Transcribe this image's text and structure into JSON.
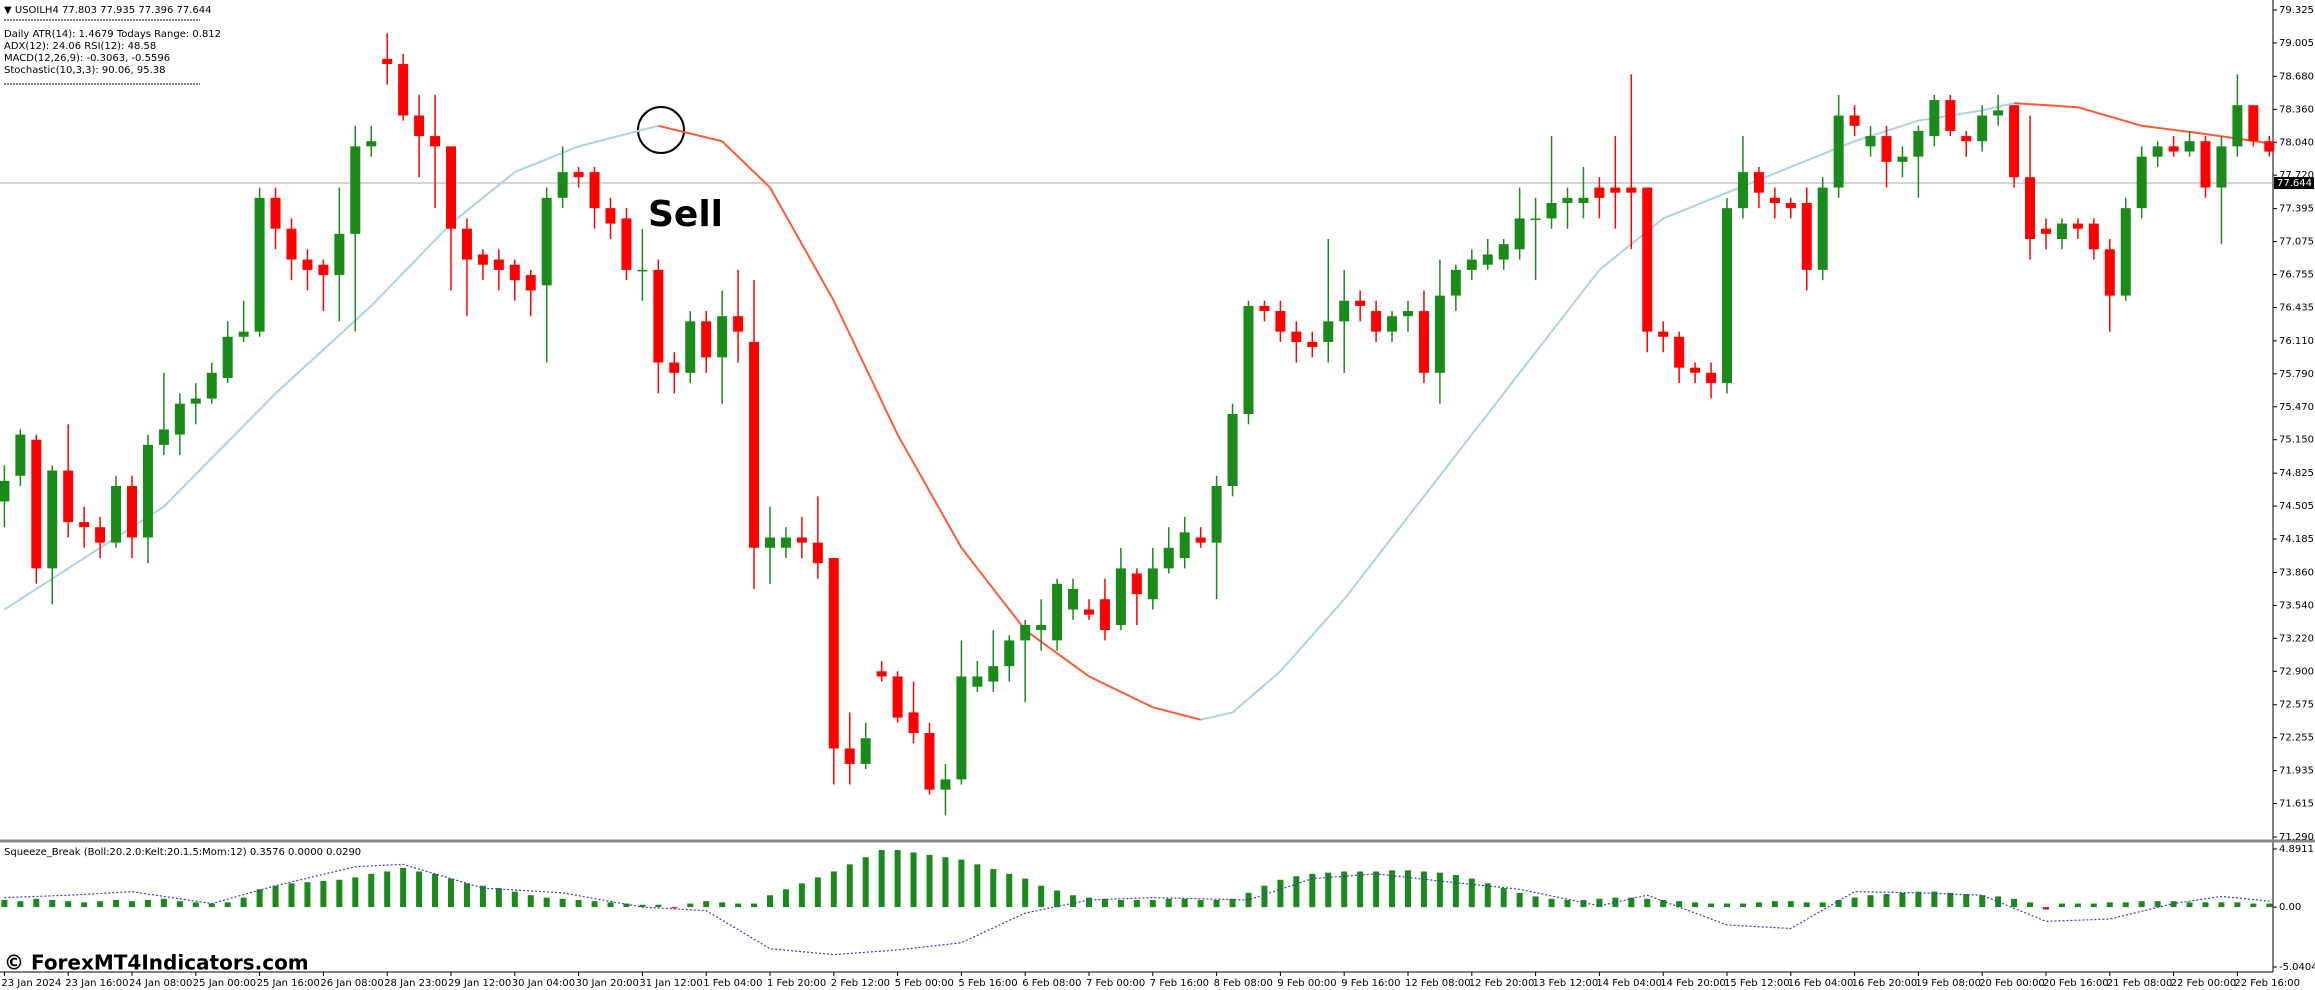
{
  "header": {
    "symbol": "▼ USOILH4  77.803 77.935 77.396 77.644",
    "lines": [
      "Daily ATR(14): 1.4679 Todays Range: 0.812",
      "ADX(12): 24.06 RSI(12): 48.58",
      "MACD(12,26,9): -0.3063, -0.5596",
      "Stochastic(10,3,3): 90.06, 95.38"
    ]
  },
  "watermark": "© ForexMT4Indicators.com",
  "chart_data": {
    "type": "candlestick",
    "up_color": "#1a8a1a",
    "down_color": "#ff0000",
    "ohlc": [
      [
        74.55,
        74.9,
        74.3,
        74.75
      ],
      [
        74.8,
        75.25,
        74.7,
        75.2
      ],
      [
        75.15,
        75.2,
        73.75,
        73.9
      ],
      [
        73.9,
        74.9,
        73.55,
        74.85
      ],
      [
        74.85,
        75.3,
        74.2,
        74.35
      ],
      [
        74.35,
        74.5,
        74.1,
        74.3
      ],
      [
        74.3,
        74.4,
        74.0,
        74.15
      ],
      [
        74.15,
        74.8,
        74.1,
        74.7
      ],
      [
        74.7,
        74.8,
        74.0,
        74.2
      ],
      [
        74.2,
        75.2,
        73.95,
        75.1
      ],
      [
        75.1,
        75.8,
        75.0,
        75.25
      ],
      [
        75.2,
        75.6,
        75.0,
        75.5
      ],
      [
        75.5,
        75.7,
        75.3,
        75.55
      ],
      [
        75.55,
        75.9,
        75.5,
        75.8
      ],
      [
        75.75,
        76.3,
        75.7,
        76.15
      ],
      [
        76.15,
        76.5,
        76.1,
        76.2
      ],
      [
        76.2,
        77.6,
        76.15,
        77.5
      ],
      [
        77.5,
        77.6,
        77.0,
        77.2
      ],
      [
        77.2,
        77.3,
        76.7,
        76.9
      ],
      [
        76.9,
        77.0,
        76.6,
        76.8
      ],
      [
        76.85,
        76.9,
        76.4,
        76.75
      ],
      [
        76.75,
        77.6,
        76.3,
        77.15
      ],
      [
        77.15,
        78.2,
        76.2,
        78.0
      ],
      [
        78.0,
        78.2,
        77.9,
        78.05
      ],
      [
        78.85,
        79.1,
        78.6,
        78.8
      ],
      [
        78.8,
        78.9,
        78.25,
        78.3
      ],
      [
        78.3,
        78.5,
        77.7,
        78.1
      ],
      [
        78.1,
        78.5,
        77.4,
        78.0
      ],
      [
        78.0,
        78.0,
        76.6,
        77.2
      ],
      [
        77.2,
        77.3,
        76.35,
        76.9
      ],
      [
        76.95,
        77.0,
        76.7,
        76.85
      ],
      [
        76.9,
        77.0,
        76.6,
        76.8
      ],
      [
        76.85,
        76.9,
        76.5,
        76.7
      ],
      [
        76.75,
        76.8,
        76.35,
        76.6
      ],
      [
        76.65,
        77.6,
        75.9,
        77.5
      ],
      [
        77.5,
        78.0,
        77.4,
        77.75
      ],
      [
        77.75,
        77.8,
        77.6,
        77.7
      ],
      [
        77.75,
        77.8,
        77.2,
        77.4
      ],
      [
        77.4,
        77.5,
        77.1,
        77.25
      ],
      [
        77.3,
        77.4,
        76.7,
        76.8
      ],
      [
        76.8,
        77.2,
        76.5,
        76.8
      ],
      [
        76.8,
        76.9,
        75.6,
        75.9
      ],
      [
        75.9,
        76.0,
        75.6,
        75.8
      ],
      [
        75.8,
        76.4,
        75.7,
        76.3
      ],
      [
        76.3,
        76.4,
        75.8,
        75.95
      ],
      [
        75.95,
        76.6,
        75.5,
        76.35
      ],
      [
        76.35,
        76.8,
        75.9,
        76.2
      ],
      [
        76.1,
        76.7,
        73.7,
        74.1
      ],
      [
        74.1,
        74.5,
        73.75,
        74.2
      ],
      [
        74.1,
        74.3,
        74.0,
        74.2
      ],
      [
        74.2,
        74.4,
        74.0,
        74.15
      ],
      [
        74.15,
        74.6,
        73.8,
        73.95
      ],
      [
        74.0,
        74.0,
        71.8,
        72.15
      ],
      [
        72.15,
        72.5,
        71.8,
        72.0
      ],
      [
        72.0,
        72.4,
        71.95,
        72.25
      ],
      [
        72.9,
        73.0,
        72.8,
        72.85
      ],
      [
        72.85,
        72.9,
        72.4,
        72.45
      ],
      [
        72.5,
        72.8,
        72.2,
        72.3
      ],
      [
        72.3,
        72.4,
        71.7,
        71.75
      ],
      [
        71.75,
        72.0,
        71.5,
        71.85
      ],
      [
        71.85,
        73.2,
        71.8,
        72.85
      ],
      [
        72.75,
        73.0,
        72.7,
        72.85
      ],
      [
        72.8,
        73.3,
        72.7,
        72.95
      ],
      [
        72.95,
        73.25,
        72.8,
        73.2
      ],
      [
        73.2,
        73.4,
        72.6,
        73.35
      ],
      [
        73.3,
        73.6,
        73.1,
        73.35
      ],
      [
        73.2,
        73.8,
        73.1,
        73.75
      ],
      [
        73.5,
        73.8,
        73.4,
        73.7
      ],
      [
        73.5,
        73.6,
        73.4,
        73.45
      ],
      [
        73.6,
        73.8,
        73.2,
        73.3
      ],
      [
        73.35,
        74.1,
        73.3,
        73.9
      ],
      [
        73.85,
        73.9,
        73.35,
        73.65
      ],
      [
        73.6,
        74.1,
        73.5,
        73.9
      ],
      [
        73.9,
        74.3,
        73.85,
        74.1
      ],
      [
        74.0,
        74.4,
        73.9,
        74.25
      ],
      [
        74.2,
        74.3,
        74.1,
        74.15
      ],
      [
        74.15,
        74.8,
        73.6,
        74.7
      ],
      [
        74.7,
        75.5,
        74.6,
        75.4
      ],
      [
        75.4,
        76.5,
        75.3,
        76.45
      ],
      [
        76.45,
        76.5,
        76.3,
        76.4
      ],
      [
        76.4,
        76.5,
        76.1,
        76.2
      ],
      [
        76.2,
        76.3,
        75.9,
        76.1
      ],
      [
        76.1,
        76.2,
        75.95,
        76.05
      ],
      [
        76.1,
        77.1,
        75.9,
        76.3
      ],
      [
        76.3,
        76.8,
        75.8,
        76.5
      ],
      [
        76.5,
        76.6,
        76.3,
        76.45
      ],
      [
        76.4,
        76.5,
        76.1,
        76.2
      ],
      [
        76.2,
        76.4,
        76.1,
        76.35
      ],
      [
        76.35,
        76.5,
        76.2,
        76.4
      ],
      [
        76.4,
        76.6,
        75.7,
        75.8
      ],
      [
        75.8,
        76.9,
        75.5,
        76.55
      ],
      [
        76.55,
        76.85,
        76.4,
        76.8
      ],
      [
        76.8,
        77.0,
        76.7,
        76.9
      ],
      [
        76.85,
        77.1,
        76.8,
        76.95
      ],
      [
        76.9,
        77.1,
        76.8,
        77.05
      ],
      [
        77.0,
        77.6,
        76.9,
        77.3
      ],
      [
        77.3,
        77.5,
        76.7,
        77.3
      ],
      [
        77.3,
        78.1,
        77.2,
        77.45
      ],
      [
        77.45,
        77.6,
        77.2,
        77.5
      ],
      [
        77.45,
        77.8,
        77.3,
        77.5
      ],
      [
        77.6,
        77.7,
        77.3,
        77.5
      ],
      [
        77.6,
        78.1,
        77.2,
        77.55
      ],
      [
        77.6,
        78.7,
        77.0,
        77.55
      ],
      [
        77.6,
        77.6,
        76.0,
        76.2
      ],
      [
        76.2,
        76.3,
        76.0,
        76.15
      ],
      [
        76.15,
        76.2,
        75.7,
        75.85
      ],
      [
        75.85,
        75.9,
        75.7,
        75.8
      ],
      [
        75.8,
        75.9,
        75.55,
        75.7
      ],
      [
        75.7,
        77.5,
        75.6,
        77.4
      ],
      [
        77.4,
        78.1,
        77.3,
        77.75
      ],
      [
        77.75,
        77.8,
        77.4,
        77.55
      ],
      [
        77.5,
        77.6,
        77.3,
        77.45
      ],
      [
        77.45,
        77.5,
        77.3,
        77.4
      ],
      [
        77.45,
        77.6,
        76.6,
        76.8
      ],
      [
        76.8,
        77.7,
        76.7,
        77.6
      ],
      [
        77.6,
        78.5,
        77.5,
        78.3
      ],
      [
        78.3,
        78.4,
        78.1,
        78.2
      ],
      [
        78.0,
        78.2,
        77.9,
        78.1
      ],
      [
        78.1,
        78.2,
        77.6,
        77.85
      ],
      [
        77.85,
        78.0,
        77.7,
        77.9
      ],
      [
        77.9,
        78.2,
        77.5,
        78.15
      ],
      [
        78.1,
        78.5,
        78.0,
        78.45
      ],
      [
        78.45,
        78.5,
        78.1,
        78.15
      ],
      [
        78.1,
        78.15,
        77.9,
        78.05
      ],
      [
        78.05,
        78.4,
        77.95,
        78.3
      ],
      [
        78.3,
        78.5,
        78.2,
        78.35
      ],
      [
        78.4,
        78.4,
        77.6,
        77.7
      ],
      [
        77.7,
        78.3,
        76.9,
        77.1
      ],
      [
        77.2,
        77.3,
        77.0,
        77.15
      ],
      [
        77.1,
        77.3,
        77.0,
        77.25
      ],
      [
        77.25,
        77.3,
        77.1,
        77.2
      ],
      [
        77.25,
        77.3,
        76.9,
        77.0
      ],
      [
        77.0,
        77.1,
        76.2,
        76.55
      ],
      [
        76.55,
        77.5,
        76.5,
        77.4
      ],
      [
        77.4,
        78.0,
        77.3,
        77.9
      ],
      [
        77.9,
        78.05,
        77.8,
        78.0
      ],
      [
        78.0,
        78.1,
        77.9,
        77.95
      ],
      [
        77.95,
        78.15,
        77.9,
        78.05
      ],
      [
        78.05,
        78.1,
        77.5,
        77.6
      ],
      [
        77.6,
        78.1,
        77.05,
        78.0
      ],
      [
        78.0,
        78.7,
        77.9,
        78.4
      ],
      [
        78.4,
        78.4,
        78.0,
        78.05
      ],
      [
        78.05,
        78.1,
        77.9,
        77.95
      ]
    ],
    "ma": {
      "up_color": "#a8d4e6",
      "down_color": "#ff5a36",
      "x": [
        0,
        10,
        17,
        23,
        28,
        32,
        36,
        41,
        45,
        48,
        52,
        56,
        60,
        64,
        68,
        72,
        75,
        77,
        80,
        84,
        88,
        92,
        96,
        100,
        104,
        108,
        112,
        116,
        120,
        124,
        126,
        130,
        134,
        138,
        142
      ],
      "values": [
        73.5,
        74.5,
        75.6,
        76.45,
        77.25,
        77.75,
        78.0,
        78.2,
        78.05,
        77.6,
        76.5,
        75.2,
        74.1,
        73.3,
        72.85,
        72.55,
        72.43,
        72.5,
        72.9,
        73.6,
        74.4,
        75.2,
        76.0,
        76.8,
        77.3,
        77.55,
        77.8,
        78.05,
        78.25,
        78.35,
        78.42,
        78.38,
        78.2,
        78.12,
        78.03
      ]
    },
    "annotation": "Sell",
    "current_price": 77.644,
    "ylim": [
      71.29,
      79.325
    ],
    "yticks": [
      79.325,
      79.005,
      {
        "value": 78.68,
        "label": "78.680"
      },
      {
        "value": 78.36,
        "label": "78.360"
      },
      {
        "value": 78.04,
        "label": "78.040"
      },
      {
        "value": 77.72,
        "label": "77.720"
      },
      77.395,
      77.075,
      76.755,
      76.435,
      {
        "value": 76.11,
        "label": "76.110"
      },
      {
        "value": 75.79,
        "label": "75.790"
      },
      {
        "value": 75.47,
        "label": "75.470"
      },
      {
        "value": 75.15,
        "label": "75.150"
      },
      74.825,
      74.505,
      74.185,
      {
        "value": 73.86,
        "label": "73.860"
      },
      {
        "value": 73.54,
        "label": "73.540"
      },
      {
        "value": 73.22,
        "label": "73.220"
      },
      {
        "value": 72.9,
        "label": "72.900"
      },
      72.575,
      72.255,
      71.935,
      71.615,
      {
        "value": 71.29,
        "label": "71.290"
      }
    ],
    "xlabels": [
      "23 Jan 2024",
      "23 Jan 16:00",
      "24 Jan 08:00",
      "25 Jan 00:00",
      "25 Jan 16:00",
      "26 Jan 08:00",
      "28 Jan 23:00",
      "29 Jan 12:00",
      "30 Jan 04:00",
      "30 Jan 20:00",
      "31 Jan 12:00",
      "1 Feb 04:00",
      "1 Feb 20:00",
      "2 Feb 12:00",
      "5 Feb 00:00",
      "5 Feb 16:00",
      "6 Feb 08:00",
      "7 Feb 00:00",
      "7 Feb 16:00",
      "8 Feb 08:00",
      "9 Feb 00:00",
      "9 Feb 16:00",
      "12 Feb 08:00",
      "12 Feb 20:00",
      "13 Feb 12:00",
      "14 Feb 04:00",
      "14 Feb 20:00",
      "15 Feb 12:00",
      "16 Feb 04:00",
      "16 Feb 20:00",
      "19 Feb 08:00",
      "20 Feb 00:00",
      "20 Feb 16:00",
      "21 Feb 08:00",
      "22 Feb 00:00",
      "22 Feb 16:00"
    ],
    "indicator": {
      "title": "Squeeze_Break (Boll:20.2.0:Kelt:20.1.5:Mom:12) 0.3576 0.0000 0.0290",
      "up_color": "#1a8a1a",
      "down_color": "#ff0000",
      "line_color": "#3a3ad0",
      "y2lim": [
        -5.0404,
        4.8911
      ],
      "y2ticks": [
        4.8911,
        {
          "value": 0,
          "label": "0.00"
        },
        -5.0404
      ],
      "values": [
        0.6,
        0.5,
        0.7,
        0.6,
        0.5,
        0.4,
        0.5,
        0.6,
        0.5,
        0.6,
        0.7,
        0.5,
        0.4,
        0.3,
        0.4,
        0.8,
        1.5,
        1.8,
        2.0,
        2.1,
        2.2,
        2.3,
        2.5,
        2.8,
        3.0,
        3.3,
        3.0,
        2.8,
        2.4,
        2.0,
        1.8,
        1.6,
        1.3,
        1.0,
        0.8,
        0.7,
        0.6,
        0.5,
        0.4,
        0.3,
        0.2,
        0.2,
        -0.1,
        0.3,
        0.5,
        0.4,
        0.3,
        0.3,
        1.0,
        1.5,
        2.0,
        2.5,
        3.0,
        3.6,
        4.2,
        4.8,
        4.8,
        4.6,
        4.4,
        4.2,
        4.0,
        3.6,
        3.2,
        2.8,
        2.4,
        1.8,
        1.4,
        1.0,
        0.8,
        0.7,
        0.6,
        0.6,
        0.6,
        0.7,
        0.7,
        0.6,
        0.6,
        0.7,
        1.2,
        1.8,
        2.3,
        2.6,
        2.8,
        2.9,
        3.0,
        3.0,
        3.0,
        3.1,
        3.1,
        3.0,
        2.9,
        2.7,
        2.4,
        2.0,
        1.6,
        1.2,
        0.9,
        0.7,
        0.6,
        0.6,
        0.7,
        0.8,
        0.8,
        0.7,
        0.6,
        0.5,
        0.4,
        0.3,
        0.3,
        0.3,
        0.4,
        0.5,
        0.5,
        0.4,
        0.4,
        0.6,
        0.8,
        1.0,
        1.1,
        1.2,
        1.3,
        1.3,
        1.2,
        1.1,
        1.0,
        0.9,
        0.7,
        0.4,
        -0.2,
        0.3,
        0.3,
        0.3,
        0.4,
        0.4,
        0.5,
        0.5,
        0.5,
        0.4,
        0.4,
        0.4,
        0.4,
        0.3,
        0.3
      ],
      "momentum": {
        "x": [
          0,
          4,
          8,
          13,
          17,
          22,
          25,
          30,
          35,
          40,
          44,
          48,
          52,
          56,
          60,
          64,
          68,
          72,
          78,
          82,
          86,
          90,
          95,
          100,
          103,
          108,
          112,
          116,
          120,
          124,
          128,
          132,
          136,
          139,
          142
        ],
        "values": [
          0.8,
          1.0,
          1.3,
          0.3,
          1.8,
          3.4,
          3.6,
          1.6,
          1.2,
          0.0,
          -0.3,
          -3.5,
          -4.0,
          -3.6,
          -3.0,
          -0.5,
          0.6,
          0.8,
          0.6,
          2.4,
          2.8,
          2.2,
          1.5,
          0.1,
          1.0,
          -1.5,
          -1.8,
          1.3,
          1.2,
          1.0,
          -1.2,
          -1.0,
          0.3,
          0.9,
          0.5
        ]
      }
    }
  }
}
